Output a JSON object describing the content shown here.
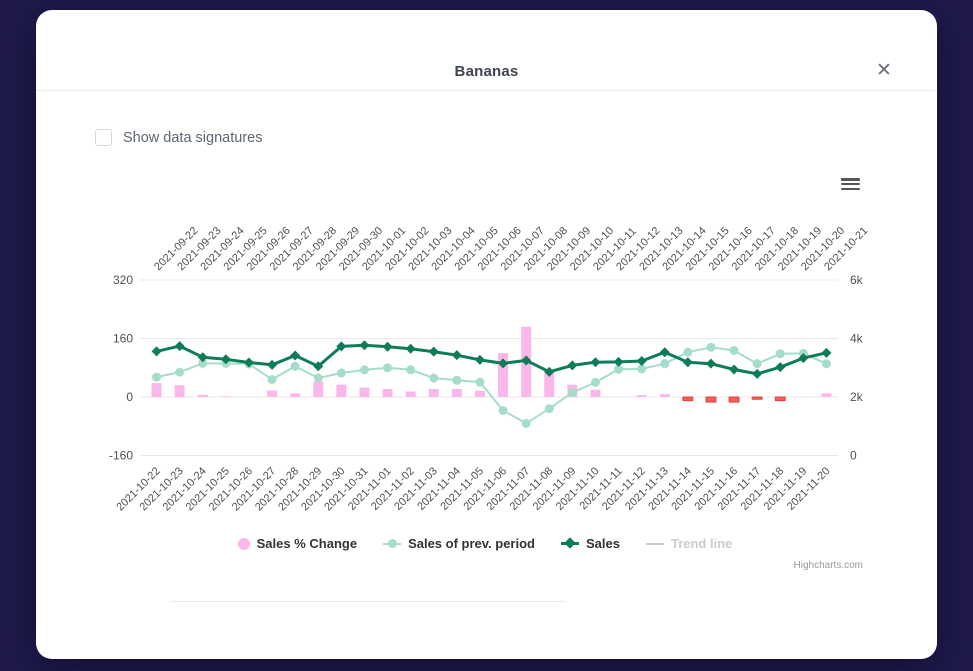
{
  "modal": {
    "title": "Bananas",
    "close_label": "✕",
    "checkbox": {
      "label": "Show data signatures",
      "checked": false
    }
  },
  "chart_data": {
    "type": "bar",
    "subtype": "combo-bar-line-dual-axis",
    "x_axis_top": {
      "categories": [
        "2021-09-22",
        "2021-09-23",
        "2021-09-24",
        "2021-09-25",
        "2021-09-26",
        "2021-09-27",
        "2021-09-28",
        "2021-09-29",
        "2021-09-30",
        "2021-10-01",
        "2021-10-02",
        "2021-10-03",
        "2021-10-04",
        "2021-10-05",
        "2021-10-06",
        "2021-10-07",
        "2021-10-08",
        "2021-10-09",
        "2021-10-10",
        "2021-10-11",
        "2021-10-12",
        "2021-10-13",
        "2021-10-14",
        "2021-10-15",
        "2021-10-16",
        "2021-10-17",
        "2021-10-18",
        "2021-10-19",
        "2021-10-20",
        "2021-10-21"
      ]
    },
    "x_axis_bottom": {
      "categories": [
        "2021-10-22",
        "2021-10-23",
        "2021-10-24",
        "2021-10-25",
        "2021-10-26",
        "2021-10-27",
        "2021-10-28",
        "2021-10-29",
        "2021-10-30",
        "2021-10-31",
        "2021-11-01",
        "2021-11-02",
        "2021-11-03",
        "2021-11-04",
        "2021-11-05",
        "2021-11-06",
        "2021-11-07",
        "2021-11-08",
        "2021-11-09",
        "2021-11-10",
        "2021-11-11",
        "2021-11-12",
        "2021-11-13",
        "2021-11-14",
        "2021-11-15",
        "2021-11-16",
        "2021-11-17",
        "2021-11-18",
        "2021-11-19",
        "2021-11-20"
      ]
    },
    "y_axis_left": {
      "ticks": [
        "320",
        "160",
        "0",
        "-160"
      ],
      "min": -160,
      "max": 320
    },
    "y_axis_right": {
      "ticks": [
        "6k",
        "4k",
        "2k",
        "0"
      ],
      "min": 0,
      "max": 6000
    },
    "series": [
      {
        "name": "Sales % Change",
        "type": "bar",
        "axis": "left",
        "color_positive": "#f9b7ea",
        "color_negative": "#f2605c",
        "border_negative": "#e4403c",
        "values": [
          38,
          32,
          6,
          2,
          0,
          18,
          10,
          42,
          34,
          26,
          22,
          15,
          22,
          22,
          17,
          120,
          192,
          74,
          34,
          20,
          0,
          5,
          8,
          -10,
          -14,
          -14,
          -6,
          -10,
          0,
          10
        ]
      },
      {
        "name": "Sales of prev. period",
        "type": "line",
        "axis": "right",
        "color": "#a6ddca",
        "marker": "circle",
        "values": [
          2680,
          2850,
          3150,
          3150,
          3130,
          2600,
          3050,
          2650,
          2820,
          2930,
          3000,
          2930,
          2650,
          2570,
          2510,
          1540,
          1100,
          1600,
          2150,
          2500,
          2950,
          2960,
          3140,
          3530,
          3700,
          3590,
          3140,
          3480,
          3490,
          3140
        ]
      },
      {
        "name": "Sales",
        "type": "line",
        "axis": "right",
        "color": "#0e7c59",
        "marker": "diamond",
        "values": [
          3560,
          3740,
          3360,
          3290,
          3180,
          3100,
          3420,
          3050,
          3730,
          3770,
          3720,
          3650,
          3550,
          3430,
          3270,
          3150,
          3250,
          2860,
          3080,
          3190,
          3200,
          3230,
          3530,
          3190,
          3140,
          2940,
          2790,
          3020,
          3330,
          3510
        ]
      },
      {
        "name": "Trend line",
        "type": "line",
        "axis": "right",
        "color": "#cccccc",
        "visible": false,
        "values": []
      }
    ],
    "legend": [
      {
        "label": "Sales % Change",
        "marker": "circle",
        "color": "#f9b7ea",
        "enabled": true
      },
      {
        "label": "Sales of prev. period",
        "marker": "line-circle",
        "color": "#a6ddca",
        "enabled": true
      },
      {
        "label": "Sales",
        "marker": "line-diamond",
        "color": "#0e7c59",
        "enabled": true
      },
      {
        "label": "Trend line",
        "marker": "line",
        "color": "#cccccc",
        "enabled": false
      }
    ],
    "grid_color": "#e8e8f1",
    "axis_label_color": "#4c5157",
    "credits": "Highcharts.com",
    "legend_position": "bottom-center",
    "grid": true
  }
}
